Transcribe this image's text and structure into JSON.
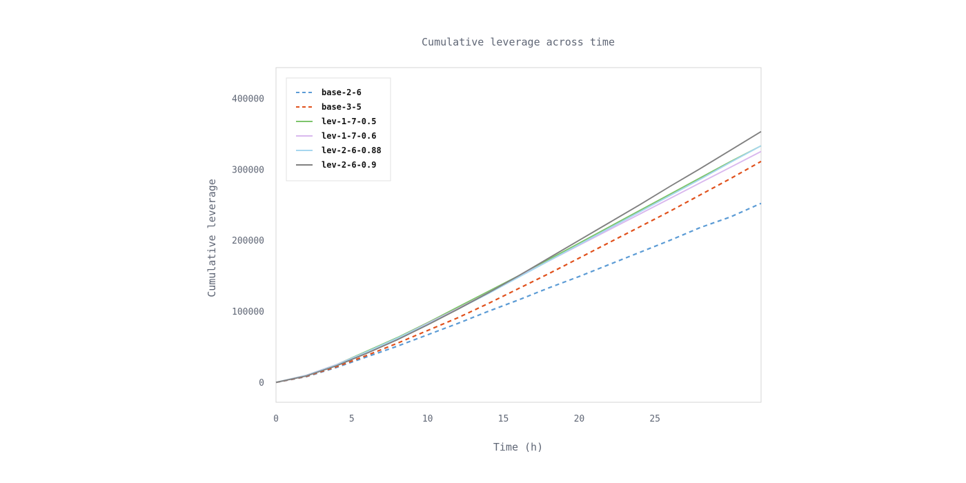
{
  "chart_data": {
    "type": "line",
    "title": "Cumulative leverage across time",
    "xlabel": "Time (h)",
    "ylabel": "Cumulative leverage",
    "xlim": [
      0,
      32
    ],
    "ylim": [
      -28000,
      443000
    ],
    "x_ticks": [
      0,
      5,
      10,
      15,
      20,
      25
    ],
    "y_ticks": [
      0,
      100000,
      200000,
      300000,
      400000
    ],
    "grid": false,
    "legend_position": "top-left",
    "x": [
      0,
      2,
      4,
      6,
      8,
      10,
      12,
      14,
      16,
      18,
      20,
      22,
      24,
      26,
      28,
      30,
      32
    ],
    "series": [
      {
        "name": "base-2-6",
        "color": "#5b9bd5",
        "dash": true,
        "values": [
          0,
          8000,
          21000,
          36000,
          51000,
          67000,
          83000,
          100000,
          116000,
          133000,
          149000,
          166000,
          183000,
          200000,
          218000,
          233000,
          252000
        ]
      },
      {
        "name": "base-3-5",
        "color": "#e0501b",
        "dash": true,
        "values": [
          0,
          8500,
          22000,
          38000,
          55000,
          73000,
          91000,
          111000,
          132000,
          153000,
          175000,
          197000,
          219000,
          241000,
          264000,
          287000,
          311000
        ]
      },
      {
        "name": "lev-1-7-0.5",
        "color": "#7dc46b",
        "dash": false,
        "values": [
          0,
          10000,
          25000,
          44000,
          63000,
          84000,
          106000,
          128000,
          150000,
          173000,
          196000,
          219000,
          242000,
          265000,
          288000,
          311000,
          333000
        ]
      },
      {
        "name": "lev-1-7-0.6",
        "color": "#d9b8ee",
        "dash": false,
        "values": [
          0,
          10000,
          25000,
          43000,
          62000,
          83000,
          104000,
          126000,
          149000,
          171000,
          193000,
          215000,
          237000,
          259000,
          281000,
          303000,
          325000
        ]
      },
      {
        "name": "lev-2-6-0.88",
        "color": "#a6d6ef",
        "dash": false,
        "values": [
          0,
          9600,
          24500,
          43000,
          62000,
          82000,
          103000,
          125000,
          148000,
          171000,
          194000,
          217000,
          240000,
          263000,
          286000,
          310000,
          333000
        ]
      },
      {
        "name": "lev-2-6-0.9",
        "color": "#808080",
        "dash": false,
        "values": [
          0,
          9000,
          23500,
          41000,
          60000,
          81000,
          103000,
          126000,
          150000,
          175000,
          200000,
          225000,
          250000,
          276000,
          301000,
          327000,
          353000
        ]
      }
    ]
  }
}
